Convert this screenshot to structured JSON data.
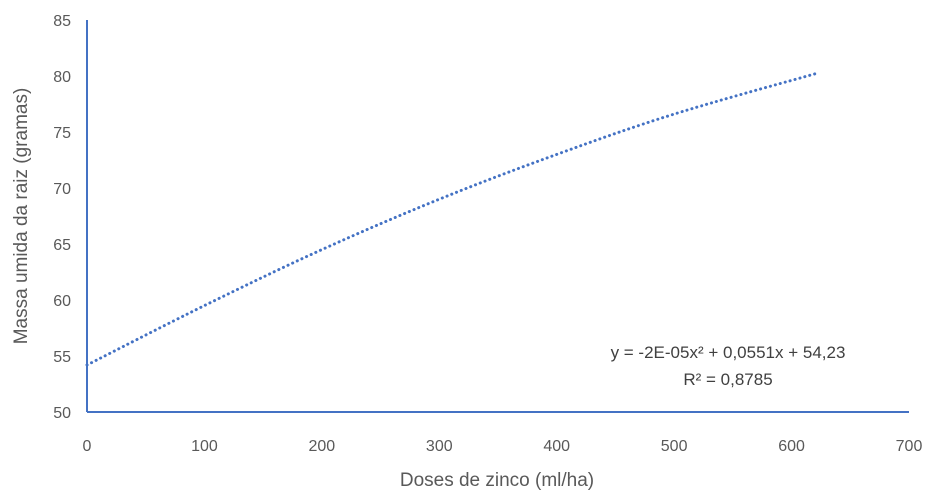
{
  "chart_data": {
    "type": "line",
    "title": "",
    "xlabel": "Doses de zinco (ml/ha)",
    "ylabel": "Massa umida da raiz (gramas)",
    "xlim": [
      0,
      700
    ],
    "ylim": [
      50,
      85
    ],
    "x_ticks": [
      0,
      100,
      200,
      300,
      400,
      500,
      600,
      700
    ],
    "y_ticks": [
      50,
      55,
      60,
      65,
      70,
      75,
      80,
      85
    ],
    "grid": false,
    "series": [
      {
        "style": "dotted",
        "color": "#4472c4",
        "x": [
          0,
          100,
          200,
          300,
          400,
          500,
          620
        ],
        "y": [
          54.2,
          59.5,
          64.5,
          69.0,
          73.0,
          76.6,
          80.2
        ]
      }
    ],
    "annotations": {
      "equation": "y = -2E-05x² + 0,0551x + 54,23",
      "r_squared": "R² = 0,8785"
    },
    "axis_color": "#4472c4"
  }
}
